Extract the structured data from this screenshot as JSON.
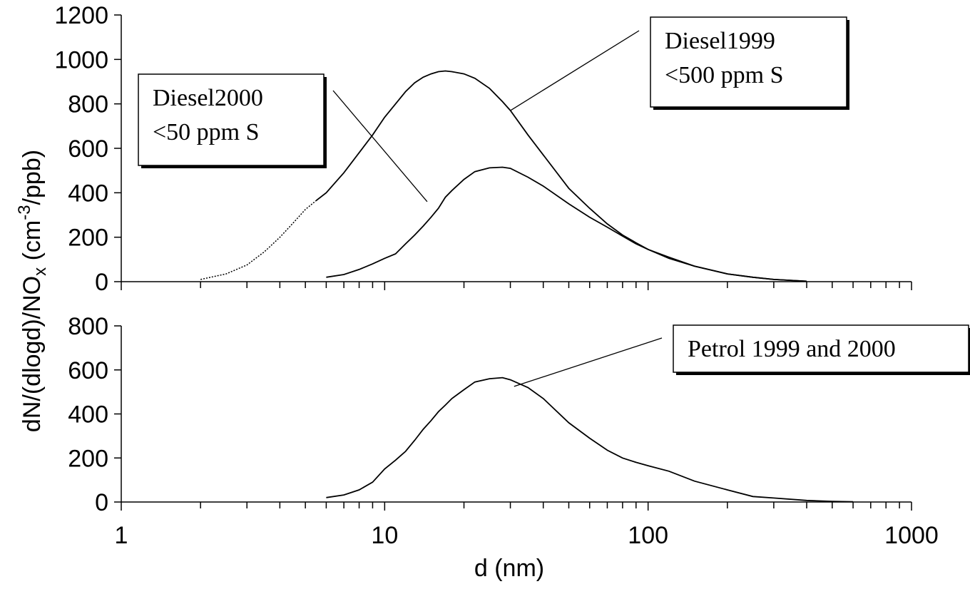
{
  "chart_data": {
    "type": "line",
    "x_scale": "log",
    "xlabel": "d (nm)",
    "ylabel": "dN/(dlogd)/NOₓ (cm⁻³/ppb)",
    "ylabel_parts": {
      "before_sub": "dN/(dlogd)/NO",
      "sub": "x",
      "middle": " (cm",
      "sup": "-3",
      "after": "/ppb)"
    },
    "xlim": [
      1,
      1000
    ],
    "x_ticks": [
      "1",
      "10",
      "100",
      "1000"
    ],
    "panels": [
      {
        "name": "top",
        "ylim": [
          0,
          1200
        ],
        "y_ticks": [
          "0",
          "200",
          "400",
          "600",
          "800",
          "1000",
          "1200"
        ],
        "series": [
          {
            "name": "Diesel1999 <500 ppm S",
            "dashed_below_x": 5.8,
            "x": [
              2,
              2.5,
              3,
              3.5,
              4,
              4.5,
              5,
              5.5,
              6,
              7,
              8,
              9,
              10,
              11,
              12,
              13,
              14,
              15,
              16,
              17,
              18,
              20,
              22,
              25,
              28,
              30,
              35,
              40,
              50,
              60,
              70,
              80,
              90,
              100,
              120,
              150,
              200,
              250,
              300,
              400
            ],
            "y": [
              10,
              35,
              75,
              135,
              200,
              265,
              325,
              365,
              400,
              490,
              580,
              660,
              740,
              800,
              855,
              895,
              920,
              935,
              945,
              948,
              945,
              935,
              915,
              870,
              810,
              770,
              660,
              570,
              420,
              330,
              260,
              210,
              175,
              145,
              110,
              70,
              35,
              20,
              10,
              2
            ]
          },
          {
            "name": "Diesel2000 <50 ppm S",
            "x": [
              6,
              7,
              8,
              9,
              10,
              11,
              12,
              13,
              14,
              15,
              16,
              17,
              18,
              20,
              22,
              25,
              28,
              30,
              35,
              40,
              50,
              60,
              70,
              80,
              90,
              100,
              120,
              150,
              200,
              250,
              300,
              400
            ],
            "y": [
              20,
              32,
              55,
              80,
              105,
              125,
              170,
              210,
              250,
              290,
              330,
              380,
              410,
              460,
              495,
              512,
              515,
              510,
              470,
              430,
              350,
              290,
              245,
              205,
              170,
              145,
              105,
              70,
              35,
              20,
              10,
              2
            ]
          }
        ],
        "annotations": [
          {
            "lines": [
              "Diesel1999",
              "<500 ppm S"
            ],
            "target": [
              30,
              770
            ]
          },
          {
            "lines": [
              "Diesel2000",
              "<50 ppm S"
            ],
            "target": [
              14.5,
              360
            ]
          }
        ]
      },
      {
        "name": "bottom",
        "ylim": [
          0,
          800
        ],
        "y_ticks": [
          "0",
          "200",
          "400",
          "600",
          "800"
        ],
        "series": [
          {
            "name": "Petrol 1999 and 2000",
            "x": [
              6,
              7,
              8,
              9,
              10,
              11,
              12,
              13,
              14,
              15,
              16,
              17,
              18,
              20,
              22,
              25,
              28,
              30,
              35,
              40,
              50,
              60,
              70,
              80,
              90,
              100,
              120,
              150,
              200,
              250,
              300,
              400,
              500,
              600
            ],
            "y": [
              20,
              32,
              55,
              90,
              150,
              190,
              230,
              280,
              330,
              370,
              410,
              440,
              470,
              510,
              545,
              560,
              565,
              555,
              520,
              470,
              360,
              290,
              235,
              200,
              180,
              165,
              140,
              95,
              55,
              25,
              18,
              7,
              3,
              1
            ]
          }
        ],
        "annotations": [
          {
            "lines": [
              "Petrol 1999 and 2000"
            ],
            "target": [
              31,
              525
            ]
          }
        ]
      }
    ]
  }
}
